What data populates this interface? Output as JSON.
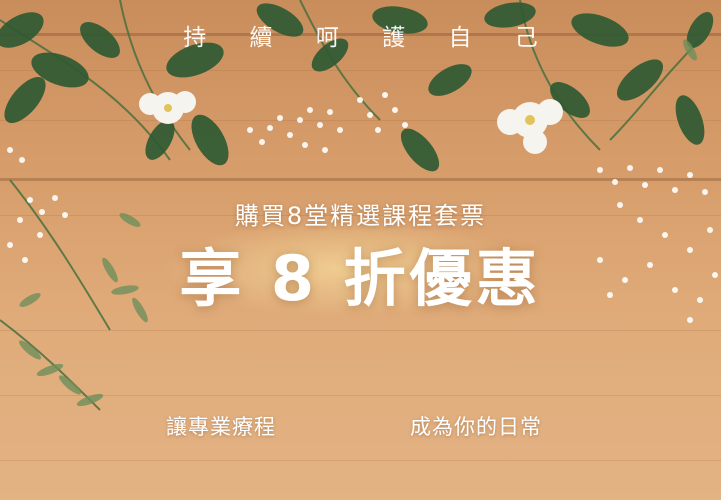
{
  "brand": {
    "text": "持 續 呵 護 自 己"
  },
  "promo": {
    "subhead": "購買8堂精選課程套票",
    "headline": "享 8 折優惠"
  },
  "footer": {
    "left": "讓專業療程",
    "right": "成為你的日常"
  },
  "colors": {
    "wood": "#d59b68",
    "text": "#ffffff",
    "leaf": "#2f5a33"
  }
}
